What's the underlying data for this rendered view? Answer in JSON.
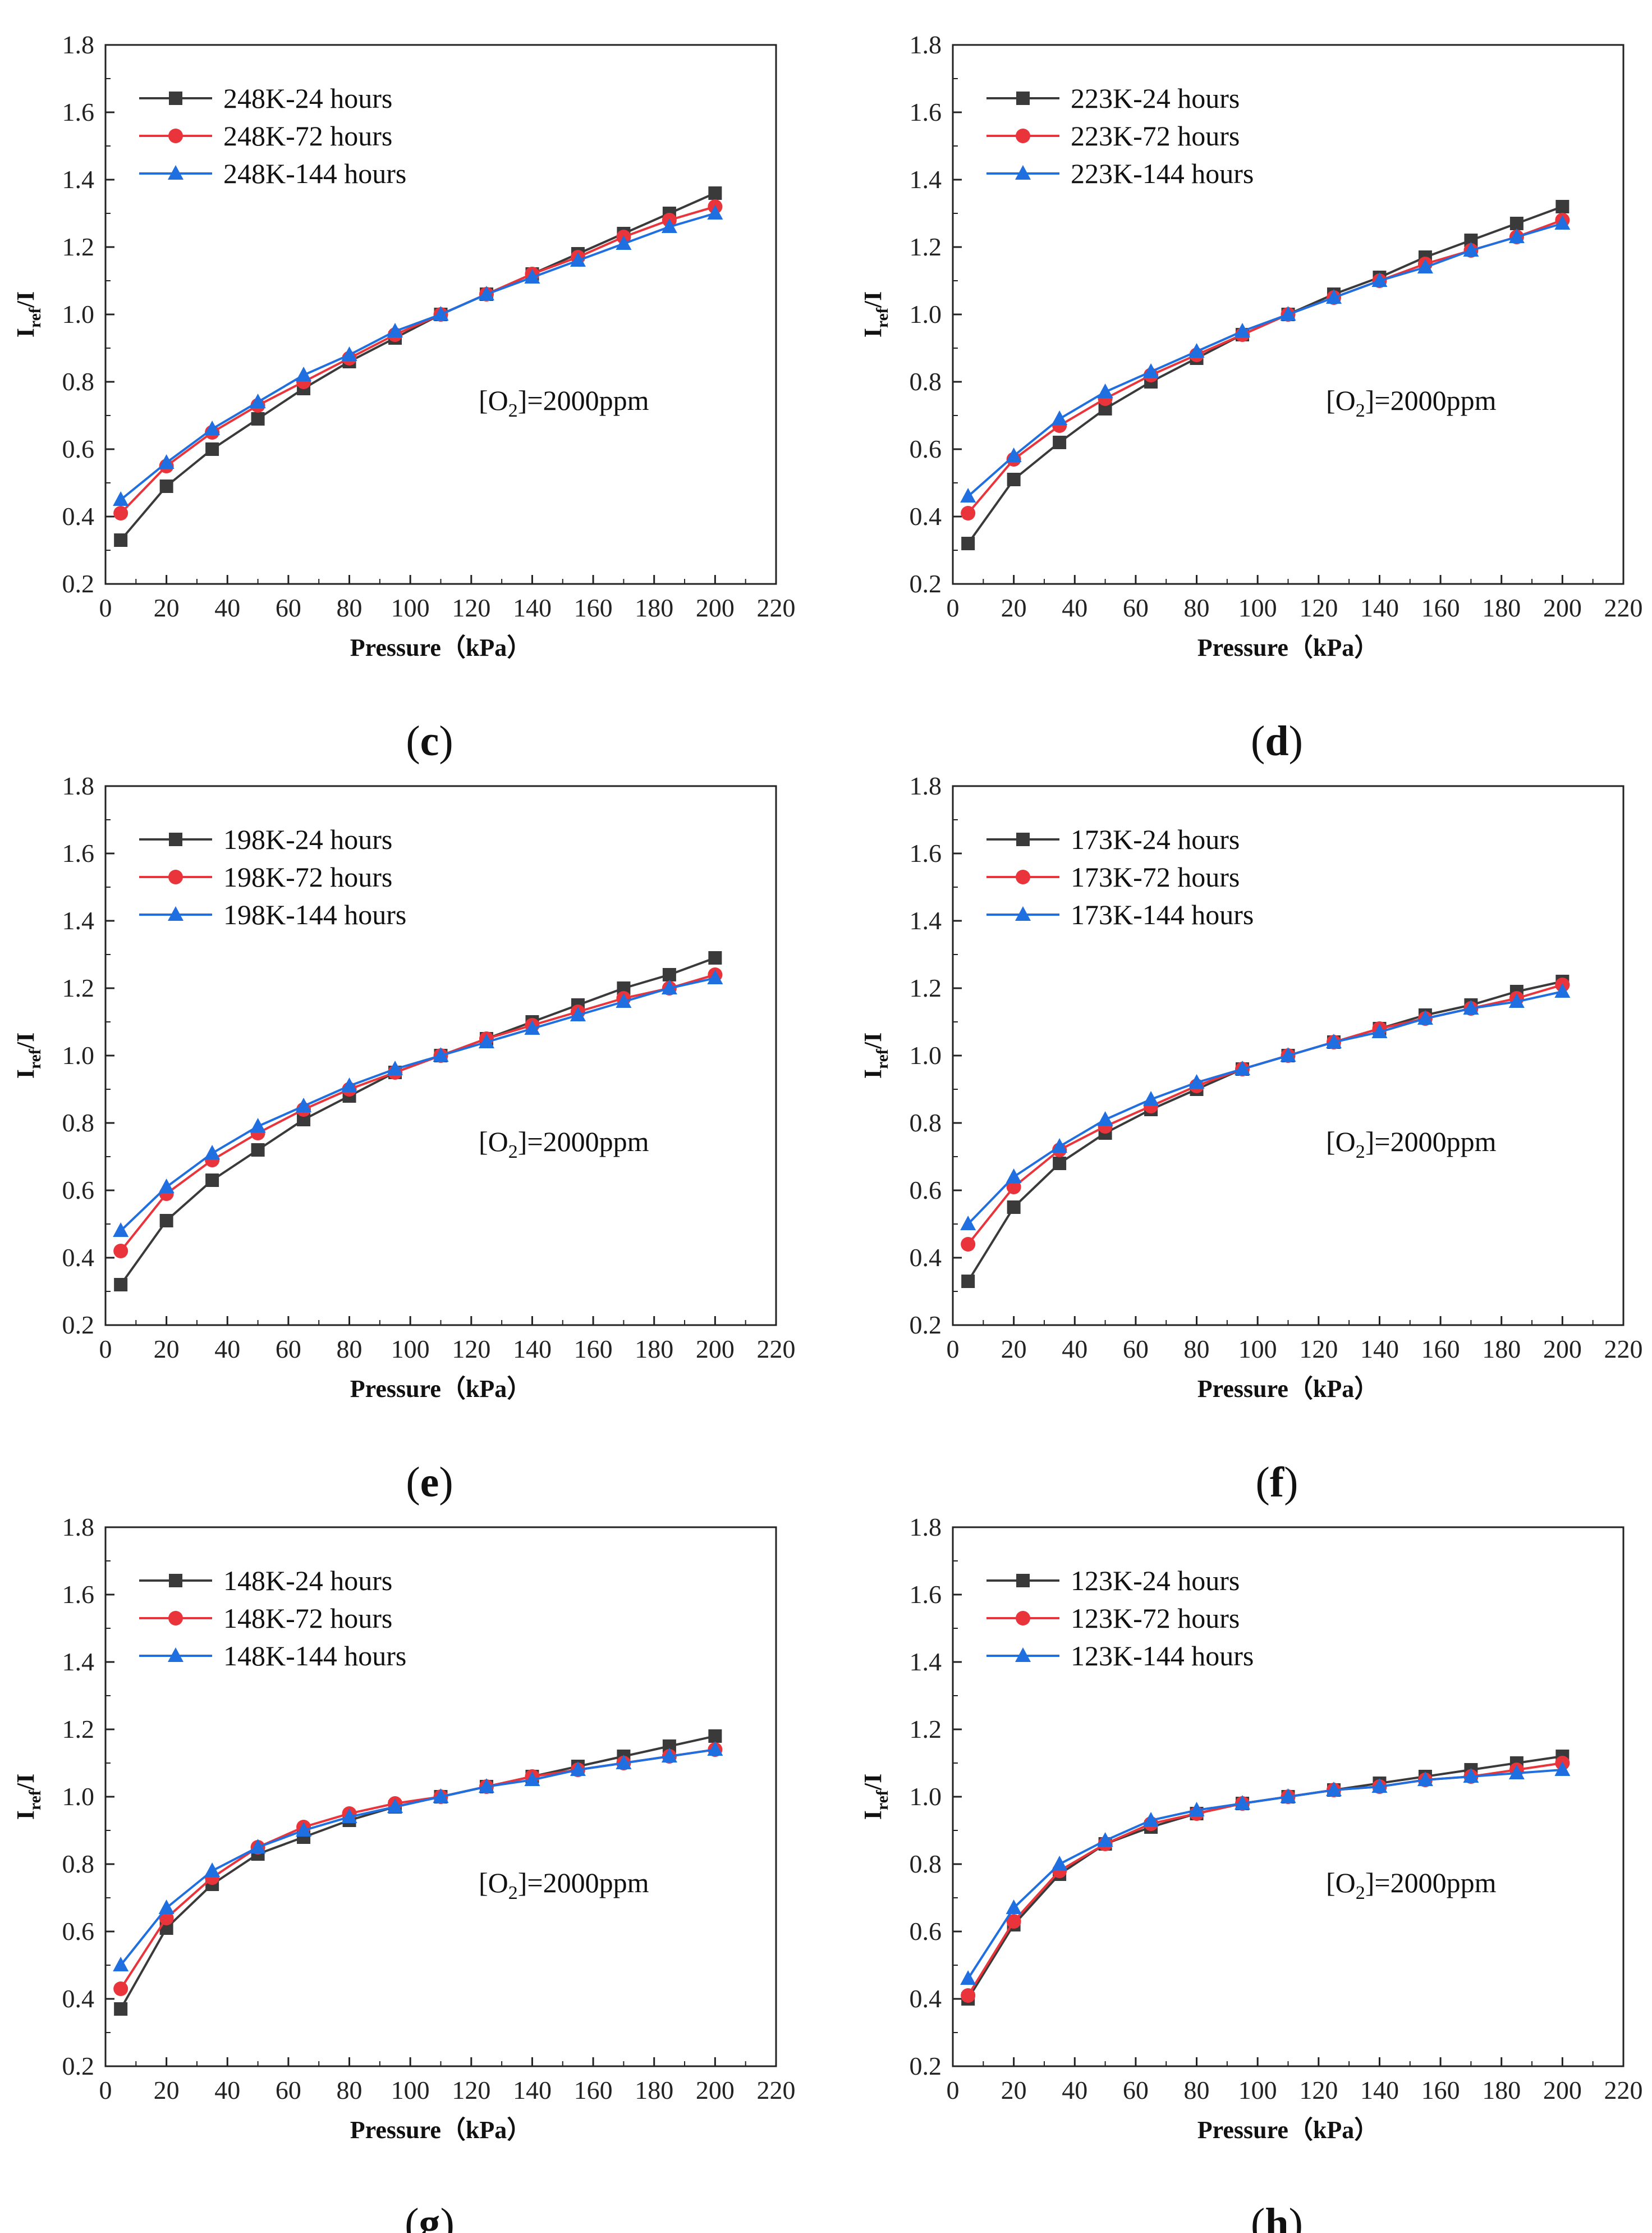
{
  "style": {
    "series_colors": [
      "#3a3a3a",
      "#e8343a",
      "#1f6fe0"
    ],
    "series_markers": [
      "square",
      "circle",
      "triangle"
    ]
  },
  "chart_data": [
    {
      "type": "line",
      "panel_label": "c",
      "xlabel": "Pressure（kPa）",
      "ylabel_main": "I",
      "ylabel_sub": "ref",
      "ylabel_tail": "/I",
      "xlim": [
        0,
        220
      ],
      "ylim": [
        0.2,
        1.8
      ],
      "xticks": [
        "0",
        "20",
        "40",
        "60",
        "80",
        "100",
        "120",
        "140",
        "160",
        "180",
        "200",
        "220"
      ],
      "yticks": [
        "0.2",
        "0.4",
        "0.6",
        "0.8",
        "1.0",
        "1.2",
        "1.4",
        "1.6",
        "1.8"
      ],
      "legend_position": "top-left",
      "annotation": {
        "pre": "[O",
        "sub": "2",
        "post": "]=2000ppm"
      },
      "x": [
        5,
        20,
        35,
        50,
        65,
        80,
        95,
        110,
        125,
        140,
        155,
        170,
        185,
        200
      ],
      "series": [
        {
          "name": "248K-24 hours",
          "values": [
            0.33,
            0.49,
            0.6,
            0.69,
            0.78,
            0.86,
            0.93,
            1.0,
            1.06,
            1.12,
            1.18,
            1.24,
            1.3,
            1.36
          ]
        },
        {
          "name": "248K-72 hours",
          "values": [
            0.41,
            0.55,
            0.65,
            0.73,
            0.8,
            0.87,
            0.94,
            1.0,
            1.06,
            1.12,
            1.17,
            1.23,
            1.28,
            1.32
          ]
        },
        {
          "name": "248K-144 hours",
          "values": [
            0.45,
            0.56,
            0.66,
            0.74,
            0.82,
            0.88,
            0.95,
            1.0,
            1.06,
            1.11,
            1.16,
            1.21,
            1.26,
            1.3
          ]
        }
      ]
    },
    {
      "type": "line",
      "panel_label": "d",
      "xlabel": "Pressure（kPa）",
      "ylabel_main": "I",
      "ylabel_sub": "ref",
      "ylabel_tail": "/I",
      "xlim": [
        0,
        220
      ],
      "ylim": [
        0.2,
        1.8
      ],
      "xticks": [
        "0",
        "20",
        "40",
        "60",
        "80",
        "100",
        "120",
        "140",
        "160",
        "180",
        "200",
        "220"
      ],
      "yticks": [
        "0.2",
        "0.4",
        "0.6",
        "0.8",
        "1.0",
        "1.2",
        "1.4",
        "1.6",
        "1.8"
      ],
      "legend_position": "top-left",
      "annotation": {
        "pre": "[O",
        "sub": "2",
        "post": "]=2000ppm"
      },
      "x": [
        5,
        20,
        35,
        50,
        65,
        80,
        95,
        110,
        125,
        140,
        155,
        170,
        185,
        200
      ],
      "series": [
        {
          "name": "223K-24 hours",
          "values": [
            0.32,
            0.51,
            0.62,
            0.72,
            0.8,
            0.87,
            0.94,
            1.0,
            1.06,
            1.11,
            1.17,
            1.22,
            1.27,
            1.32
          ]
        },
        {
          "name": "223K-72 hours",
          "values": [
            0.41,
            0.57,
            0.67,
            0.75,
            0.82,
            0.88,
            0.94,
            1.0,
            1.05,
            1.1,
            1.15,
            1.19,
            1.23,
            1.28
          ]
        },
        {
          "name": "223K-144 hours",
          "values": [
            0.46,
            0.58,
            0.69,
            0.77,
            0.83,
            0.89,
            0.95,
            1.0,
            1.05,
            1.1,
            1.14,
            1.19,
            1.23,
            1.27
          ]
        }
      ]
    },
    {
      "type": "line",
      "panel_label": "e",
      "xlabel": "Pressure（kPa）",
      "ylabel_main": "I",
      "ylabel_sub": "ref",
      "ylabel_tail": "/I",
      "xlim": [
        0,
        220
      ],
      "ylim": [
        0.2,
        1.8
      ],
      "xticks": [
        "0",
        "20",
        "40",
        "60",
        "80",
        "100",
        "120",
        "140",
        "160",
        "180",
        "200",
        "220"
      ],
      "yticks": [
        "0.2",
        "0.4",
        "0.6",
        "0.8",
        "1.0",
        "1.2",
        "1.4",
        "1.6",
        "1.8"
      ],
      "legend_position": "top-left",
      "annotation": {
        "pre": "[O",
        "sub": "2",
        "post": "]=2000ppm"
      },
      "x": [
        5,
        20,
        35,
        50,
        65,
        80,
        95,
        110,
        125,
        140,
        155,
        170,
        185,
        200
      ],
      "series": [
        {
          "name": "198K-24 hours",
          "values": [
            0.32,
            0.51,
            0.63,
            0.72,
            0.81,
            0.88,
            0.95,
            1.0,
            1.05,
            1.1,
            1.15,
            1.2,
            1.24,
            1.29
          ]
        },
        {
          "name": "198K-72 hours",
          "values": [
            0.42,
            0.59,
            0.69,
            0.77,
            0.84,
            0.9,
            0.95,
            1.0,
            1.05,
            1.09,
            1.13,
            1.17,
            1.2,
            1.24
          ]
        },
        {
          "name": "198K-144 hours",
          "values": [
            0.48,
            0.61,
            0.71,
            0.79,
            0.85,
            0.91,
            0.96,
            1.0,
            1.04,
            1.08,
            1.12,
            1.16,
            1.2,
            1.23
          ]
        }
      ]
    },
    {
      "type": "line",
      "panel_label": "f",
      "xlabel": "Pressure（kPa）",
      "ylabel_main": "I",
      "ylabel_sub": "ref",
      "ylabel_tail": "/I",
      "xlim": [
        0,
        220
      ],
      "ylim": [
        0.2,
        1.8
      ],
      "xticks": [
        "0",
        "20",
        "40",
        "60",
        "80",
        "100",
        "120",
        "140",
        "160",
        "180",
        "200",
        "220"
      ],
      "yticks": [
        "0.2",
        "0.4",
        "0.6",
        "0.8",
        "1.0",
        "1.2",
        "1.4",
        "1.6",
        "1.8"
      ],
      "legend_position": "top-left",
      "annotation": {
        "pre": "[O",
        "sub": "2",
        "post": "]=2000ppm"
      },
      "x": [
        5,
        20,
        35,
        50,
        65,
        80,
        95,
        110,
        125,
        140,
        155,
        170,
        185,
        200
      ],
      "series": [
        {
          "name": "173K-24 hours",
          "values": [
            0.33,
            0.55,
            0.68,
            0.77,
            0.84,
            0.9,
            0.96,
            1.0,
            1.04,
            1.08,
            1.12,
            1.15,
            1.19,
            1.22
          ]
        },
        {
          "name": "173K-72 hours",
          "values": [
            0.44,
            0.61,
            0.72,
            0.79,
            0.85,
            0.91,
            0.96,
            1.0,
            1.04,
            1.08,
            1.11,
            1.14,
            1.17,
            1.21
          ]
        },
        {
          "name": "173K-144 hours",
          "values": [
            0.5,
            0.64,
            0.73,
            0.81,
            0.87,
            0.92,
            0.96,
            1.0,
            1.04,
            1.07,
            1.11,
            1.14,
            1.16,
            1.19
          ]
        }
      ]
    },
    {
      "type": "line",
      "panel_label": "g",
      "xlabel": "Pressure（kPa）",
      "ylabel_main": "I",
      "ylabel_sub": "ref",
      "ylabel_tail": "/I",
      "xlim": [
        0,
        220
      ],
      "ylim": [
        0.2,
        1.8
      ],
      "xticks": [
        "0",
        "20",
        "40",
        "60",
        "80",
        "100",
        "120",
        "140",
        "160",
        "180",
        "200",
        "220"
      ],
      "yticks": [
        "0.2",
        "0.4",
        "0.6",
        "0.8",
        "1.0",
        "1.2",
        "1.4",
        "1.6",
        "1.8"
      ],
      "legend_position": "top-left",
      "annotation": {
        "pre": "[O",
        "sub": "2",
        "post": "]=2000ppm"
      },
      "x": [
        5,
        20,
        35,
        50,
        65,
        80,
        95,
        110,
        125,
        140,
        155,
        170,
        185,
        200
      ],
      "series": [
        {
          "name": "148K-24 hours",
          "values": [
            0.37,
            0.61,
            0.74,
            0.83,
            0.88,
            0.93,
            0.97,
            1.0,
            1.03,
            1.06,
            1.09,
            1.12,
            1.15,
            1.18
          ]
        },
        {
          "name": "148K-72 hours",
          "values": [
            0.43,
            0.64,
            0.76,
            0.85,
            0.91,
            0.95,
            0.98,
            1.0,
            1.03,
            1.06,
            1.08,
            1.1,
            1.12,
            1.14
          ]
        },
        {
          "name": "148K-144 hours",
          "values": [
            0.5,
            0.67,
            0.78,
            0.85,
            0.9,
            0.94,
            0.97,
            1.0,
            1.03,
            1.05,
            1.08,
            1.1,
            1.12,
            1.14
          ]
        }
      ]
    },
    {
      "type": "line",
      "panel_label": "h",
      "xlabel": "Pressure（kPa）",
      "ylabel_main": "I",
      "ylabel_sub": "ref",
      "ylabel_tail": "/I",
      "xlim": [
        0,
        220
      ],
      "ylim": [
        0.2,
        1.8
      ],
      "xticks": [
        "0",
        "20",
        "40",
        "60",
        "80",
        "100",
        "120",
        "140",
        "160",
        "180",
        "200",
        "220"
      ],
      "yticks": [
        "0.2",
        "0.4",
        "0.6",
        "0.8",
        "1.0",
        "1.2",
        "1.4",
        "1.6",
        "1.8"
      ],
      "legend_position": "top-left",
      "annotation": {
        "pre": "[O",
        "sub": "2",
        "post": "]=2000ppm"
      },
      "x": [
        5,
        20,
        35,
        50,
        65,
        80,
        95,
        110,
        125,
        140,
        155,
        170,
        185,
        200
      ],
      "series": [
        {
          "name": "123K-24 hours",
          "values": [
            0.4,
            0.62,
            0.77,
            0.86,
            0.91,
            0.95,
            0.98,
            1.0,
            1.02,
            1.04,
            1.06,
            1.08,
            1.1,
            1.12
          ]
        },
        {
          "name": "123K-72 hours",
          "values": [
            0.41,
            0.63,
            0.78,
            0.86,
            0.92,
            0.95,
            0.98,
            1.0,
            1.02,
            1.03,
            1.05,
            1.06,
            1.08,
            1.1
          ]
        },
        {
          "name": "123K-144 hours",
          "values": [
            0.46,
            0.67,
            0.8,
            0.87,
            0.93,
            0.96,
            0.98,
            1.0,
            1.02,
            1.03,
            1.05,
            1.06,
            1.07,
            1.08
          ]
        }
      ]
    }
  ]
}
